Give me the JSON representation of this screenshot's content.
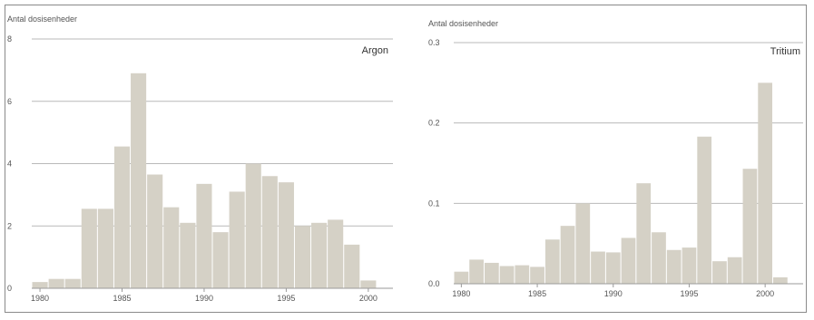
{
  "chart_data": [
    {
      "type": "bar",
      "title": "Argon",
      "ylabel": "Antal dosisenheder",
      "xlabel": "",
      "x": [
        1980,
        1981,
        1982,
        1983,
        1984,
        1985,
        1986,
        1987,
        1988,
        1989,
        1990,
        1991,
        1992,
        1993,
        1994,
        1995,
        1996,
        1997,
        1998,
        1999,
        2000
      ],
      "values": [
        0.2,
        0.3,
        0.3,
        2.55,
        2.55,
        4.55,
        6.9,
        3.65,
        2.6,
        2.1,
        3.35,
        1.8,
        3.1,
        4.0,
        3.6,
        3.4,
        2.0,
        2.1,
        2.2,
        1.4,
        0.25
      ],
      "ylim": [
        0,
        8
      ],
      "yticks": [
        0,
        2,
        4,
        6,
        8
      ],
      "xticks": [
        1980,
        1985,
        1990,
        1995,
        2000
      ],
      "grid": true,
      "bar_color": "#d5d1c6"
    },
    {
      "type": "bar",
      "title": "Tritium",
      "ylabel": "Antal dosisenheder",
      "xlabel": "",
      "x": [
        1980,
        1981,
        1982,
        1983,
        1984,
        1985,
        1986,
        1987,
        1988,
        1989,
        1990,
        1991,
        1992,
        1993,
        1994,
        1995,
        1996,
        1997,
        1998,
        1999,
        2000,
        2001
      ],
      "values": [
        0.015,
        0.03,
        0.026,
        0.022,
        0.023,
        0.021,
        0.055,
        0.072,
        0.1,
        0.04,
        0.039,
        0.057,
        0.125,
        0.064,
        0.042,
        0.045,
        0.183,
        0.028,
        0.033,
        0.143,
        0.25,
        0.008
      ],
      "ylim": [
        0,
        0.3
      ],
      "yticks": [
        0.0,
        0.1,
        0.2,
        0.3
      ],
      "ytick_labels": [
        "0.0",
        "0.1",
        "0.2",
        "0.3"
      ],
      "xticks": [
        1980,
        1985,
        1990,
        1995,
        2000
      ],
      "grid": true,
      "bar_color": "#d5d1c6"
    }
  ]
}
